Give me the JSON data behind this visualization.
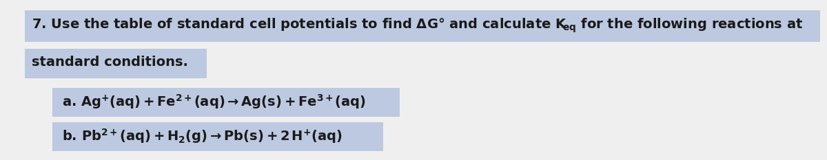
{
  "background_color": "#efefef",
  "text_color": "#1a1a1a",
  "highlight_color": "#bcc9e0",
  "fig_width": 12.0,
  "fig_height": 2.33,
  "dpi": 100,
  "font_size_main": 14,
  "font_size_reaction": 14,
  "font_weight": "bold"
}
